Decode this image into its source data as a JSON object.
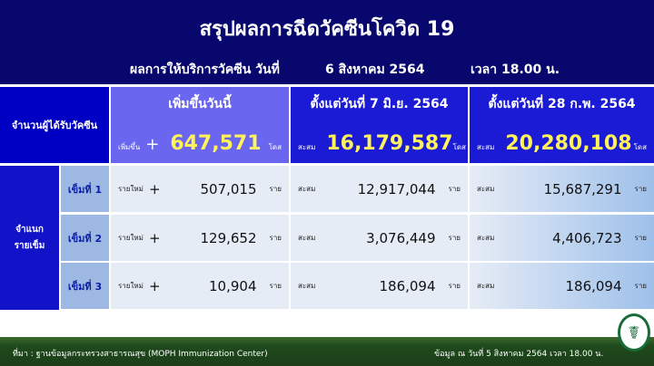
{
  "title": "สรุปผลการฉีดวัคซีนโควิด 19",
  "subtitle": {
    "label": "ผลการให้บริการวัคซีน  วันที่",
    "date": "6 สิงหาคม 2564",
    "time": "เวลา 18.00 น."
  },
  "row_header": "จำนวนผู้ได้รับวัคซีน",
  "group_header": [
    "จำแนก",
    "รายเข็ม"
  ],
  "columns": [
    {
      "title": "เพิ่มขึ้นวันนี้",
      "prefix": "เพิ่มขึ้น",
      "sign": "+",
      "total": "647,571",
      "unit": "โดส"
    },
    {
      "title": "ตั้งแต่วันที่ 7 มิ.ย. 2564",
      "prefix": "สะสม",
      "total": "16,179,587",
      "unit": "โดส"
    },
    {
      "title": "ตั้งแต่วันที่ 28 ก.พ. 2564",
      "prefix": "สะสม",
      "total": "20,280,108",
      "unit": "โดส"
    }
  ],
  "doses": [
    {
      "label": "เข็มที่ 1",
      "today_prefix": "รายใหม่",
      "sign": "+",
      "today": "507,015",
      "since_jun_prefix": "สะสม",
      "since_jun": "12,917,044",
      "since_feb_prefix": "สะสม",
      "since_feb": "15,687,291",
      "unit": "ราย"
    },
    {
      "label": "เข็มที่ 2",
      "today_prefix": "รายใหม่",
      "sign": "+",
      "today": "129,652",
      "since_jun_prefix": "สะสม",
      "since_jun": "3,076,449",
      "since_feb_prefix": "สะสม",
      "since_feb": "4,406,723",
      "unit": "ราย"
    },
    {
      "label": "เข็มที่ 3",
      "today_prefix": "รายใหม่",
      "sign": "+",
      "today": "10,904",
      "since_jun_prefix": "สะสม",
      "since_jun": "186,094",
      "since_feb_prefix": "สะสม",
      "since_feb": "186,094",
      "unit": "ราย"
    }
  ],
  "footer": {
    "source": "ที่มา : ฐานข้อมูลกระทรวงสาธารณสุข (MOPH  Immunization Center)",
    "as_of": "ข้อมูล ณ วันที่ 5 สิงหาคม 2564 เวลา 18.00 น."
  },
  "colors": {
    "banner": "#07076e",
    "today_header": "#6a66f0",
    "cumulative_header": "#1b1bd6",
    "footer": "#1f4a1c",
    "highlight": "#fff35a"
  }
}
